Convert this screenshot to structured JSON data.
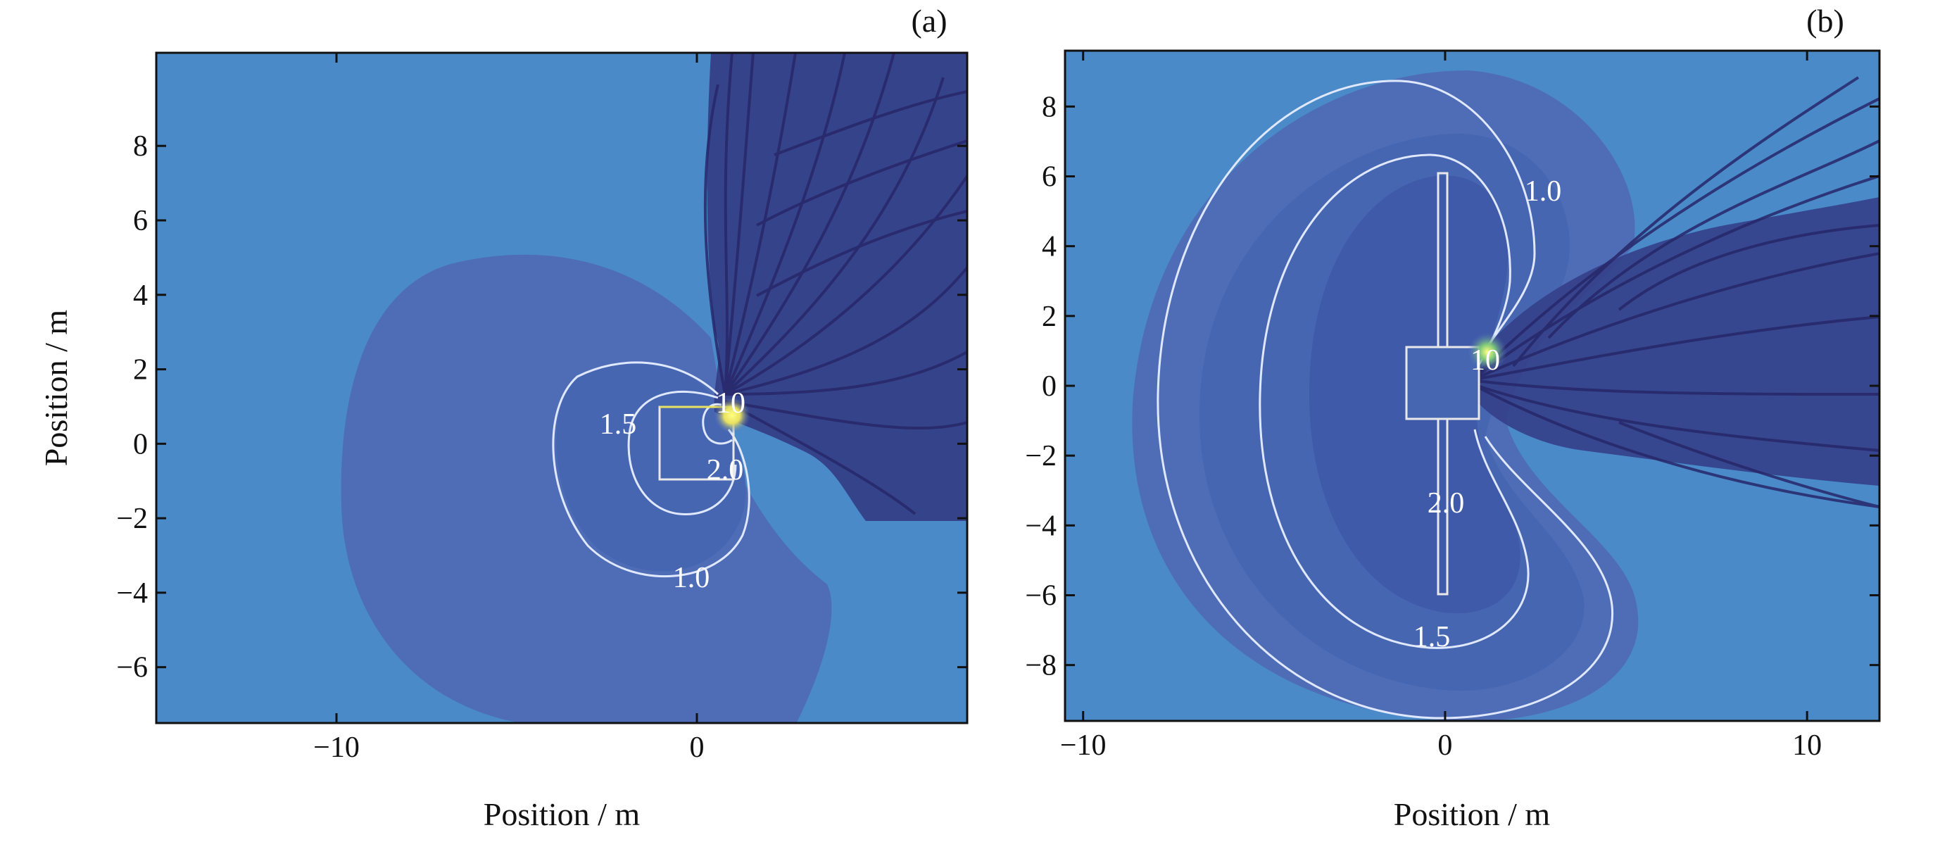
{
  "colors": {
    "background_field": "#4a8ac8",
    "mid_field": "#4f6db6",
    "inner_field": "#3f5aa8",
    "streamline": "#2a2a6e",
    "contour_line": "#dfe8ff",
    "hotspot": "#f4f060",
    "page": "#ffffff"
  },
  "chart_data": [
    {
      "panel_label": "(a)",
      "type": "heatmap",
      "title": "",
      "xlabel": "Position / m",
      "ylabel": "Position / m",
      "xlim": [
        -15,
        7.5
      ],
      "ylim": [
        -7.5,
        10.5
      ],
      "xticks": [
        -10,
        0
      ],
      "xtick_labels": [
        "−10",
        "0"
      ],
      "yticks": [
        -6,
        -4,
        -2,
        0,
        2,
        4,
        6,
        8
      ],
      "ytick_labels": [
        "−6",
        "−4",
        "−2",
        "0",
        "2",
        "4",
        "6",
        "8"
      ],
      "grid": false,
      "structure": {
        "shape": "box",
        "x": [
          -1,
          1
        ],
        "y": [
          -1,
          1
        ]
      },
      "contour_levels": [
        1.0,
        1.5,
        2.0,
        10
      ],
      "contour_labels": [
        {
          "text": "1.5",
          "x": -2.1,
          "y": 0.5
        },
        {
          "text": "10",
          "x": 1.0,
          "y": 1.0
        },
        {
          "text": "2.0",
          "x": 0.9,
          "y": -0.75
        },
        {
          "text": "1.0",
          "x": 0.0,
          "y": -3.6
        }
      ],
      "streamlines": "wake extending toward positive x and positive y"
    },
    {
      "panel_label": "(b)",
      "type": "heatmap",
      "title": "",
      "xlabel": "Position / m",
      "ylabel": "",
      "xlim": [
        -10.5,
        12
      ],
      "ylim": [
        -9.6,
        9.6
      ],
      "xticks": [
        -10,
        0,
        10
      ],
      "xtick_labels": [
        "−10",
        "0",
        "10"
      ],
      "yticks": [
        -8,
        -6,
        -4,
        -2,
        0,
        2,
        4,
        6,
        8
      ],
      "ytick_labels": [
        "−8",
        "−6",
        "−4",
        "−2",
        "0",
        "2",
        "4",
        "6",
        "8"
      ],
      "grid": false,
      "structure": {
        "shape": "box-with-vertical-plate",
        "x": [
          -1,
          1
        ],
        "y": [
          -1,
          1
        ],
        "plate_y": [
          -6,
          6
        ]
      },
      "contour_levels": [
        1.0,
        1.5,
        2.0,
        10
      ],
      "contour_labels": [
        {
          "text": "1.0",
          "x": 2.3,
          "y": 4.8
        },
        {
          "text": "10",
          "x": 0.6,
          "y": 0.6
        },
        {
          "text": "2.0",
          "x": -0.3,
          "y": -3.3
        },
        {
          "text": "1.5",
          "x": -1.0,
          "y": -6.9
        }
      ],
      "streamlines": "wake extending toward positive x"
    }
  ]
}
